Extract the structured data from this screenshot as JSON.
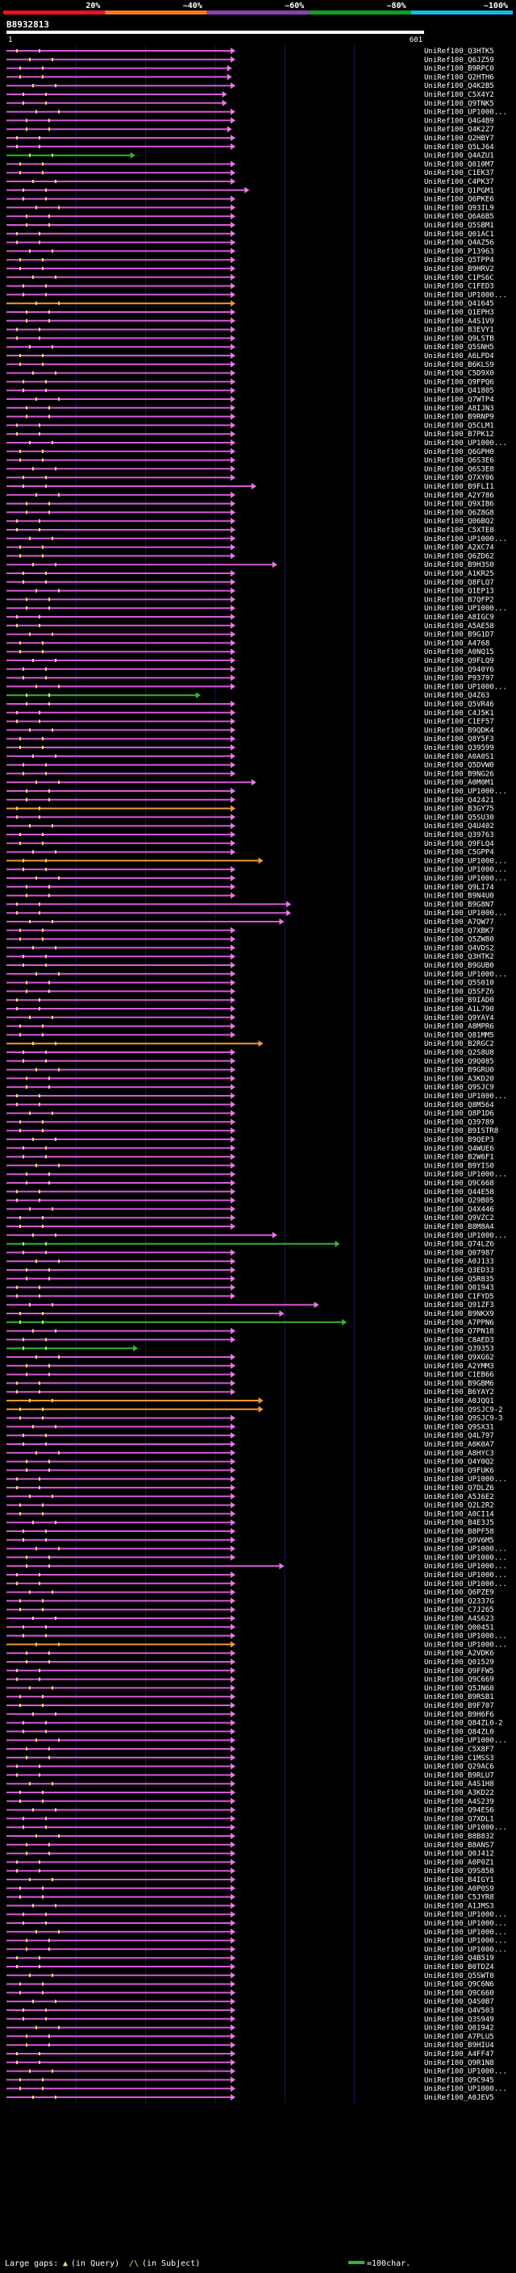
{
  "chart_data": {
    "type": "alignment-overview",
    "query_id": "B8932813",
    "axis": {
      "start_label": "1",
      "end_label": "601",
      "min": 1,
      "max": 601
    },
    "identity_scale": {
      "labels": [
        "20%",
        "~40%",
        "~60%",
        "~80%",
        "~100%"
      ],
      "colors": [
        "#e8141c",
        "#f47b20",
        "#8e3fb5",
        "#0fa020",
        "#16b8e6"
      ]
    },
    "colors": {
      "hit_line": "#d858d8",
      "hit_arrow": "#e878e8",
      "orange": "#f59a2a",
      "green": "#2fb82f",
      "gap_query": "#e0e080",
      "grid": "#141a5a",
      "legend_scale": "#2fb82f"
    },
    "legend": {
      "gap_text": "Large gaps:",
      "query_marker": "▲",
      "query_text": "(in Query)",
      "subject_marker": "/\\",
      "subject_text": "(in Subject)",
      "scale_text": "=100char."
    },
    "hit_style_codes": [
      "p",
      "o",
      "g"
    ],
    "hits": [
      [
        "UniRef100_Q3HTK5",
        330,
        "p"
      ],
      [
        "UniRef100_Q6JZ59",
        330,
        "p"
      ],
      [
        "UniRef100_B9RPC0",
        325,
        "p"
      ],
      [
        "UniRef100_Q2HTH6",
        325,
        "p"
      ],
      [
        "UniRef100_Q4K2B5",
        330,
        "p"
      ],
      [
        "UniRef100_C5X4Y2",
        318,
        "p"
      ],
      [
        "UniRef100_Q9TNK5",
        318,
        "p"
      ],
      [
        "UniRef100_UP1000...",
        330,
        "p"
      ],
      [
        "UniRef100_Q4G4B9",
        330,
        "p"
      ],
      [
        "UniRef100_Q4K2Z7",
        325,
        "p"
      ],
      [
        "UniRef100_Q2HBY7",
        330,
        "p"
      ],
      [
        "UniRef100_Q5LJ64",
        330,
        "p"
      ],
      [
        "UniRef100_Q4AZU1",
        186,
        "g"
      ],
      [
        "UniRef100_Q010M7",
        330,
        "p"
      ],
      [
        "UniRef100_C1EK37",
        330,
        "p"
      ],
      [
        "UniRef100_C4PK37",
        330,
        "p"
      ],
      [
        "UniRef100_Q1PGM1",
        350,
        "p"
      ],
      [
        "UniRef100_Q6PKE6",
        330,
        "p"
      ],
      [
        "UniRef100_Q93IL9",
        330,
        "p"
      ],
      [
        "UniRef100_Q6A6B5",
        330,
        "p"
      ],
      [
        "UniRef100_Q5SBM1",
        330,
        "p"
      ],
      [
        "UniRef100_Q01AC1",
        330,
        "p"
      ],
      [
        "UniRef100_Q4AZ56",
        330,
        "p"
      ],
      [
        "UniRef100_P13963",
        330,
        "p"
      ],
      [
        "UniRef100_Q5TPP4",
        330,
        "p"
      ],
      [
        "UniRef100_B9HRV2",
        330,
        "p"
      ],
      [
        "UniRef100_C1PS6C",
        330,
        "p"
      ],
      [
        "UniRef100_C1FED3",
        330,
        "p"
      ],
      [
        "UniRef100_UP1000...",
        330,
        "p"
      ],
      [
        "UniRef100_Q41645",
        330,
        "o"
      ],
      [
        "UniRef100_Q1EPH3",
        330,
        "p"
      ],
      [
        "UniRef100_A4S1V9",
        330,
        "p"
      ],
      [
        "UniRef100_B3EVY1",
        330,
        "p"
      ],
      [
        "UniRef100_Q9LSTB",
        330,
        "p"
      ],
      [
        "UniRef100_Q5SNH5",
        330,
        "p"
      ],
      [
        "UniRef100_A6LPD4",
        330,
        "p"
      ],
      [
        "UniRef100_B6KLS9",
        330,
        "p"
      ],
      [
        "UniRef100_C5D9X0",
        330,
        "p"
      ],
      [
        "UniRef100_Q9FPQ6",
        330,
        "p"
      ],
      [
        "UniRef100_Q41805",
        330,
        "p"
      ],
      [
        "UniRef100_Q7WTP4",
        330,
        "p"
      ],
      [
        "UniRef100_A8IJN3",
        330,
        "p"
      ],
      [
        "UniRef100_B9RNP9",
        330,
        "p"
      ],
      [
        "UniRef100_Q5CLM1",
        330,
        "p"
      ],
      [
        "UniRef100_B7PK12",
        330,
        "p"
      ],
      [
        "UniRef100_UP1000...",
        330,
        "p"
      ],
      [
        "UniRef100_Q6GPH0",
        330,
        "p"
      ],
      [
        "UniRef100_Q6S3E6",
        330,
        "p"
      ],
      [
        "UniRef100_Q6S3E8",
        330,
        "p"
      ],
      [
        "UniRef100_Q7XY06",
        330,
        "p"
      ],
      [
        "UniRef100_B9FLI1",
        360,
        "p"
      ],
      [
        "UniRef100_A2Y786",
        330,
        "p"
      ],
      [
        "UniRef100_Q9XIB6",
        330,
        "p"
      ],
      [
        "UniRef100_Q6Z8G8",
        330,
        "p"
      ],
      [
        "UniRef100_Q06BQ2",
        330,
        "p"
      ],
      [
        "UniRef100_C5XTE8",
        330,
        "p"
      ],
      [
        "UniRef100_UP1000...",
        330,
        "p"
      ],
      [
        "UniRef100_A2XC74",
        330,
        "p"
      ],
      [
        "UniRef100_Q6ZD62",
        330,
        "p"
      ],
      [
        "UniRef100_B9H3S0",
        390,
        "p"
      ],
      [
        "UniRef100_A1KR25",
        330,
        "p"
      ],
      [
        "UniRef100_Q8FLQ7",
        330,
        "p"
      ],
      [
        "UniRef100_Q1EP13",
        330,
        "p"
      ],
      [
        "UniRef100_B7QFP2",
        330,
        "p"
      ],
      [
        "UniRef100_UP1000...",
        330,
        "p"
      ],
      [
        "UniRef100_A8IGC9",
        330,
        "p"
      ],
      [
        "UniRef100_A5AE58",
        330,
        "p"
      ],
      [
        "UniRef100_B9G1D7",
        330,
        "p"
      ],
      [
        "UniRef100_A4768",
        330,
        "p"
      ],
      [
        "UniRef100_A0NQ15",
        330,
        "p"
      ],
      [
        "UniRef100_Q9FLQ9",
        330,
        "p"
      ],
      [
        "UniRef100_Q940Y6",
        330,
        "p"
      ],
      [
        "UniRef100_P93797",
        330,
        "p"
      ],
      [
        "UniRef100_UP1000...",
        330,
        "p"
      ],
      [
        "UniRef100_Q4Z63",
        280,
        "g"
      ],
      [
        "UniRef100_Q5VR46",
        330,
        "p"
      ],
      [
        "UniRef100_C4J5K1",
        330,
        "p"
      ],
      [
        "UniRef100_C1EF57",
        330,
        "p"
      ],
      [
        "UniRef100_B9QDK4",
        330,
        "p"
      ],
      [
        "UniRef100_Q8Y5F3",
        330,
        "p"
      ],
      [
        "UniRef100_Q39599",
        330,
        "p"
      ],
      [
        "UniRef100_A0A0S1",
        330,
        "p"
      ],
      [
        "UniRef100_Q5DVW0",
        330,
        "p"
      ],
      [
        "UniRef100_B9NG26",
        330,
        "p"
      ],
      [
        "UniRef100_A0M0M1",
        360,
        "p"
      ],
      [
        "UniRef100_UP1000...",
        330,
        "p"
      ],
      [
        "UniRef100_Q42421",
        330,
        "p"
      ],
      [
        "UniRef100_B3GY75",
        330,
        "o"
      ],
      [
        "UniRef100_Q5SU30",
        330,
        "p"
      ],
      [
        "UniRef100_Q4U402",
        330,
        "p"
      ],
      [
        "UniRef100_Q39763",
        330,
        "p"
      ],
      [
        "UniRef100_Q9FLQ4",
        330,
        "p"
      ],
      [
        "UniRef100_C5GPP4",
        330,
        "p"
      ],
      [
        "UniRef100_UP1000...",
        370,
        "o"
      ],
      [
        "UniRef100_UP1000...",
        330,
        "p"
      ],
      [
        "UniRef100_UP1000...",
        330,
        "p"
      ],
      [
        "UniRef100_Q9LI74",
        330,
        "p"
      ],
      [
        "UniRef100_B9N4U0",
        330,
        "p"
      ],
      [
        "UniRef100_B9G8N7",
        410,
        "p"
      ],
      [
        "UniRef100_UP1000...",
        410,
        "p"
      ],
      [
        "UniRef100_A7QW77",
        400,
        "p"
      ],
      [
        "UniRef100_Q7XBK7",
        330,
        "p"
      ],
      [
        "UniRef100_Q5ZW80",
        330,
        "p"
      ],
      [
        "UniRef100_Q4VDS2",
        330,
        "p"
      ],
      [
        "UniRef100_Q3HTK2",
        330,
        "p"
      ],
      [
        "UniRef100_B9GUB0",
        330,
        "p"
      ],
      [
        "UniRef100_UP1000...",
        330,
        "p"
      ],
      [
        "UniRef100_Q5S010",
        330,
        "p"
      ],
      [
        "UniRef100_Q5SFZ6",
        330,
        "p"
      ],
      [
        "UniRef100_B9IAD0",
        330,
        "p"
      ],
      [
        "UniRef100_A1L790",
        330,
        "p"
      ],
      [
        "UniRef100_Q9YAY4",
        330,
        "p"
      ],
      [
        "UniRef100_A8MPR6",
        330,
        "p"
      ],
      [
        "UniRef100_Q81MM5",
        330,
        "p"
      ],
      [
        "UniRef100_B2RGC2",
        370,
        "o"
      ],
      [
        "UniRef100_Q2S8U8",
        330,
        "p"
      ],
      [
        "UniRef100_Q9Q085",
        330,
        "p"
      ],
      [
        "UniRef100_B9GRU0",
        330,
        "p"
      ],
      [
        "UniRef100_A3KD20",
        330,
        "p"
      ],
      [
        "UniRef100_Q9SJC9",
        330,
        "p"
      ],
      [
        "UniRef100_UP1000...",
        330,
        "p"
      ],
      [
        "UniRef100_Q8M564",
        330,
        "p"
      ],
      [
        "UniRef100_Q8P1D6",
        330,
        "p"
      ],
      [
        "UniRef100_Q39789",
        330,
        "p"
      ],
      [
        "UniRef100_B9ISTR8",
        330,
        "p"
      ],
      [
        "UniRef100_B9QEP3",
        330,
        "p"
      ],
      [
        "UniRef100_Q4WUE6",
        330,
        "p"
      ],
      [
        "UniRef100_B2W6F1",
        330,
        "p"
      ],
      [
        "UniRef100_B9YIS0",
        330,
        "p"
      ],
      [
        "UniRef100_UP1000...",
        330,
        "p"
      ],
      [
        "UniRef100_Q9C668",
        330,
        "p"
      ],
      [
        "UniRef100_Q44E58",
        330,
        "p"
      ],
      [
        "UniRef100_Q29B05",
        330,
        "p"
      ],
      [
        "UniRef100_Q4X446",
        330,
        "p"
      ],
      [
        "UniRef100_Q9VZC2",
        330,
        "p"
      ],
      [
        "UniRef100_B8M8A4",
        330,
        "p"
      ],
      [
        "UniRef100_UP1000...",
        390,
        "p"
      ],
      [
        "UniRef100_Q74LZ6",
        480,
        "g"
      ],
      [
        "UniRef100_Q07987",
        330,
        "p"
      ],
      [
        "UniRef100_A0J133",
        330,
        "p"
      ],
      [
        "UniRef100_Q3ED33",
        330,
        "p"
      ],
      [
        "UniRef100_Q5R835",
        330,
        "p"
      ],
      [
        "UniRef100_Q01943",
        330,
        "p"
      ],
      [
        "UniRef100_C1FYD5",
        330,
        "p"
      ],
      [
        "UniRef100_Q91ZF3",
        450,
        "p"
      ],
      [
        "UniRef100_B9NKX9",
        400,
        "p"
      ],
      [
        "UniRef100_A7PPN6",
        490,
        "g"
      ],
      [
        "UniRef100_Q7PN18",
        330,
        "p"
      ],
      [
        "UniRef100_C8AED3",
        330,
        "p"
      ],
      [
        "UniRef100_Q39353",
        190,
        "g"
      ],
      [
        "UniRef100_Q9XG62",
        330,
        "p"
      ],
      [
        "UniRef100_A2YMM3",
        330,
        "p"
      ],
      [
        "UniRef100_C1EB66",
        330,
        "p"
      ],
      [
        "UniRef100_B9GBM6",
        330,
        "p"
      ],
      [
        "UniRef100_B6YAY2",
        330,
        "p"
      ],
      [
        "UniRef100_A0JQQ1",
        370,
        "o"
      ],
      [
        "UniRef100_Q9SJC9-2",
        370,
        "o"
      ],
      [
        "UniRef100_Q9SJC9-3",
        330,
        "p"
      ],
      [
        "UniRef100_Q9SX31",
        330,
        "p"
      ],
      [
        "UniRef100_Q4L797",
        330,
        "p"
      ],
      [
        "UniRef100_A0K0A7",
        330,
        "p"
      ],
      [
        "UniRef100_A8HYC3",
        330,
        "p"
      ],
      [
        "UniRef100_Q4Y0Q2",
        330,
        "p"
      ],
      [
        "UniRef100_Q9FUK6",
        330,
        "p"
      ],
      [
        "UniRef100_UP1000...",
        330,
        "p"
      ],
      [
        "UniRef100_Q7DLZ6",
        330,
        "p"
      ],
      [
        "UniRef100_A5J6E2",
        330,
        "p"
      ],
      [
        "UniRef100_Q2L2R2",
        330,
        "p"
      ],
      [
        "UniRef100_A0CI14",
        330,
        "p"
      ],
      [
        "UniRef100_B4E3J5",
        330,
        "p"
      ],
      [
        "UniRef100_B8PF58",
        330,
        "p"
      ],
      [
        "UniRef100_Q9V6M5",
        330,
        "p"
      ],
      [
        "UniRef100_UP1000...",
        330,
        "p"
      ],
      [
        "UniRef100_UP1000...",
        330,
        "p"
      ],
      [
        "UniRef100_UP1000...",
        400,
        "p"
      ],
      [
        "UniRef100_UP1000...",
        330,
        "p"
      ],
      [
        "UniRef100_UP1000...",
        330,
        "p"
      ],
      [
        "UniRef100_Q6PZE9",
        330,
        "p"
      ],
      [
        "UniRef100_Q2337G",
        330,
        "p"
      ],
      [
        "UniRef100_C7J265",
        330,
        "p"
      ],
      [
        "UniRef100_A4S623",
        330,
        "p"
      ],
      [
        "UniRef100_Q00451",
        330,
        "p"
      ],
      [
        "UniRef100_UP1000...",
        330,
        "p"
      ],
      [
        "UniRef100_UP1000...",
        330,
        "o"
      ],
      [
        "UniRef100_A2VDK6",
        330,
        "p"
      ],
      [
        "UniRef100_Q01529",
        330,
        "p"
      ],
      [
        "UniRef100_Q9FFW5",
        330,
        "p"
      ],
      [
        "UniRef100_Q9C669",
        330,
        "p"
      ],
      [
        "UniRef100_Q5JN60",
        330,
        "p"
      ],
      [
        "UniRef100_B9RSB1",
        330,
        "p"
      ],
      [
        "UniRef100_B9F707",
        330,
        "p"
      ],
      [
        "UniRef100_B9H6F6",
        330,
        "p"
      ],
      [
        "UniRef100_Q84ZL0-2",
        330,
        "p"
      ],
      [
        "UniRef100_Q84ZL0",
        330,
        "p"
      ],
      [
        "UniRef100_UP1000...",
        330,
        "p"
      ],
      [
        "UniRef100_C5X8F7",
        330,
        "p"
      ],
      [
        "UniRef100_C1MSS3",
        330,
        "p"
      ],
      [
        "UniRef100_Q29AC6",
        330,
        "p"
      ],
      [
        "UniRef100_B9RLU7",
        330,
        "p"
      ],
      [
        "UniRef100_A4S1H8",
        330,
        "p"
      ],
      [
        "UniRef100_A3KD22",
        330,
        "p"
      ],
      [
        "UniRef100_A4S239",
        330,
        "p"
      ],
      [
        "UniRef100_Q94ES6",
        330,
        "p"
      ],
      [
        "UniRef100_Q7XDL1",
        330,
        "p"
      ],
      [
        "UniRef100_UP1000...",
        330,
        "p"
      ],
      [
        "UniRef100_B8B832",
        330,
        "p"
      ],
      [
        "UniRef100_B8ANS7",
        330,
        "p"
      ],
      [
        "UniRef100_Q0J412",
        330,
        "p"
      ],
      [
        "UniRef100_A0P0Z1",
        330,
        "p"
      ],
      [
        "UniRef100_Q9S858",
        330,
        "p"
      ],
      [
        "UniRef100_B4IGY1",
        330,
        "p"
      ],
      [
        "UniRef100_A0P0S9",
        330,
        "p"
      ],
      [
        "UniRef100_C5JYR8",
        330,
        "p"
      ],
      [
        "UniRef100_A1JMS3",
        330,
        "p"
      ],
      [
        "UniRef100_UP1000...",
        330,
        "p"
      ],
      [
        "UniRef100_UP1000...",
        330,
        "p"
      ],
      [
        "UniRef100_UP1000...",
        330,
        "p"
      ],
      [
        "UniRef100_UP1000...",
        330,
        "p"
      ],
      [
        "UniRef100_UP1000...",
        330,
        "p"
      ],
      [
        "UniRef100_Q4B519",
        330,
        "p"
      ],
      [
        "UniRef100_B0TDZ4",
        330,
        "p"
      ],
      [
        "UniRef100_Q5SWT0",
        330,
        "p"
      ],
      [
        "UniRef100_Q9C6N6",
        330,
        "p"
      ],
      [
        "UniRef100_Q9C660",
        330,
        "p"
      ],
      [
        "UniRef100_Q4S0B7",
        330,
        "p"
      ],
      [
        "UniRef100_Q4V503",
        330,
        "p"
      ],
      [
        "UniRef100_Q3S949",
        330,
        "p"
      ],
      [
        "UniRef100_Q01942",
        330,
        "p"
      ],
      [
        "UniRef100_A7PLU5",
        330,
        "p"
      ],
      [
        "UniRef100_B9HIU4",
        330,
        "p"
      ],
      [
        "UniRef100_A4FF47",
        330,
        "p"
      ],
      [
        "UniRef100_Q9R1N8",
        330,
        "p"
      ],
      [
        "UniRef100_UP1000...",
        330,
        "p"
      ],
      [
        "UniRef100_Q9C945",
        330,
        "p"
      ],
      [
        "UniRef100_UP1000...",
        330,
        "p"
      ],
      [
        "UniRef100_A0JEV5",
        330,
        "p"
      ]
    ]
  }
}
